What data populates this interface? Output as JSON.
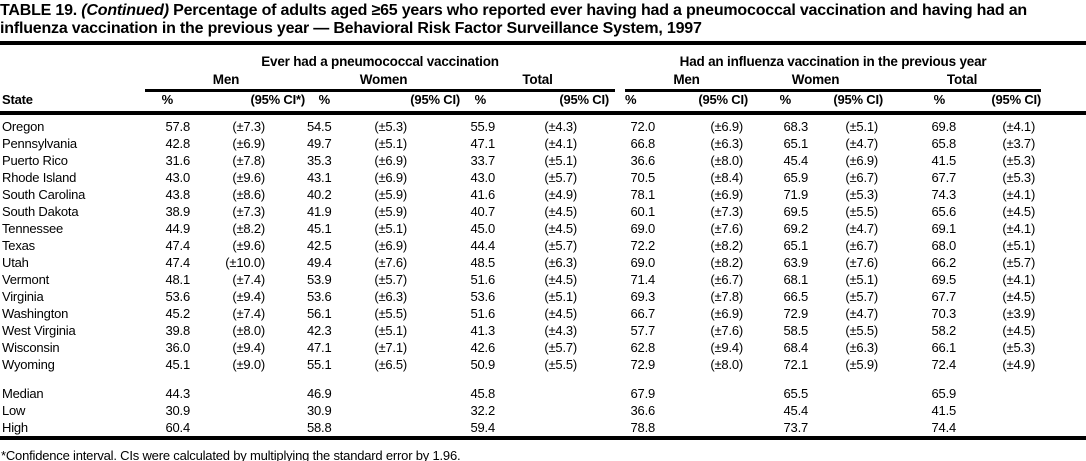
{
  "colors": {
    "text": "#000000",
    "background": "#ffffff"
  },
  "title": {
    "table_label": "TABLE 19.",
    "continued": "(Continued)",
    "text": "Percentage of adults aged ≥65 years who reported ever having had a pneumococcal vaccination and having had an influenza vaccination in the previous year — Behavioral Risk Factor Surveillance System, 1997"
  },
  "table": {
    "state_header": "State",
    "section_pneumococcal": {
      "title": "Ever had a pneumococcal vaccination",
      "groups": [
        "Men",
        "Women",
        "Total"
      ],
      "col_headers": [
        "%",
        "(95% CI*)",
        "%",
        "(95% CI)",
        "%",
        "(95% CI)"
      ]
    },
    "section_influenza": {
      "title": "Had an influenza vaccination in the previous year",
      "groups": [
        "Men",
        "Women",
        "Total"
      ],
      "col_headers": [
        "%",
        "(95% CI)",
        "%",
        "(95% CI)",
        "%",
        "(95% CI)"
      ]
    },
    "rows": [
      {
        "state": "Oregon",
        "values": [
          "57.8",
          "(±7.3)",
          "54.5",
          "(±5.3)",
          "55.9",
          "(±4.3)",
          "72.0",
          "(±6.9)",
          "68.3",
          "(±5.1)",
          "69.8",
          "(±4.1)"
        ]
      },
      {
        "state": "Pennsylvania",
        "values": [
          "42.8",
          "(±6.9)",
          "49.7",
          "(±5.1)",
          "47.1",
          "(±4.1)",
          "66.8",
          "(±6.3)",
          "65.1",
          "(±4.7)",
          "65.8",
          "(±3.7)"
        ]
      },
      {
        "state": "Puerto Rico",
        "values": [
          "31.6",
          "(±7.8)",
          "35.3",
          "(±6.9)",
          "33.7",
          "(±5.1)",
          "36.6",
          "(±8.0)",
          "45.4",
          "(±6.9)",
          "41.5",
          "(±5.3)"
        ]
      },
      {
        "state": "Rhode Island",
        "values": [
          "43.0",
          "(±9.6)",
          "43.1",
          "(±6.9)",
          "43.0",
          "(±5.7)",
          "70.5",
          "(±8.4)",
          "65.9",
          "(±6.7)",
          "67.7",
          "(±5.3)"
        ]
      },
      {
        "state": "South Carolina",
        "values": [
          "43.8",
          "(±8.6)",
          "40.2",
          "(±5.9)",
          "41.6",
          "(±4.9)",
          "78.1",
          "(±6.9)",
          "71.9",
          "(±5.3)",
          "74.3",
          "(±4.1)"
        ]
      },
      {
        "state": "South Dakota",
        "values": [
          "38.9",
          "(±7.3)",
          "41.9",
          "(±5.9)",
          "40.7",
          "(±4.5)",
          "60.1",
          "(±7.3)",
          "69.5",
          "(±5.5)",
          "65.6",
          "(±4.5)"
        ]
      },
      {
        "state": "Tennessee",
        "values": [
          "44.9",
          "(±8.2)",
          "45.1",
          "(±5.1)",
          "45.0",
          "(±4.5)",
          "69.0",
          "(±7.6)",
          "69.2",
          "(±4.7)",
          "69.1",
          "(±4.1)"
        ]
      },
      {
        "state": "Texas",
        "values": [
          "47.4",
          "(±9.6)",
          "42.5",
          "(±6.9)",
          "44.4",
          "(±5.7)",
          "72.2",
          "(±8.2)",
          "65.1",
          "(±6.7)",
          "68.0",
          "(±5.1)"
        ]
      },
      {
        "state": "Utah",
        "values": [
          "47.4",
          "(±10.0)",
          "49.4",
          "(±7.6)",
          "48.5",
          "(±6.3)",
          "69.0",
          "(±8.2)",
          "63.9",
          "(±7.6)",
          "66.2",
          "(±5.7)"
        ]
      },
      {
        "state": "Vermont",
        "values": [
          "48.1",
          "(±7.4)",
          "53.9",
          "(±5.7)",
          "51.6",
          "(±4.5)",
          "71.4",
          "(±6.7)",
          "68.1",
          "(±5.1)",
          "69.5",
          "(±4.1)"
        ]
      },
      {
        "state": "Virginia",
        "values": [
          "53.6",
          "(±9.4)",
          "53.6",
          "(±6.3)",
          "53.6",
          "(±5.1)",
          "69.3",
          "(±7.8)",
          "66.5",
          "(±5.7)",
          "67.7",
          "(±4.5)"
        ]
      },
      {
        "state": "Washington",
        "values": [
          "45.2",
          "(±7.4)",
          "56.1",
          "(±5.5)",
          "51.6",
          "(±4.5)",
          "66.7",
          "(±6.9)",
          "72.9",
          "(±4.7)",
          "70.3",
          "(±3.9)"
        ]
      },
      {
        "state": "West Virginia",
        "values": [
          "39.8",
          "(±8.0)",
          "42.3",
          "(±5.1)",
          "41.3",
          "(±4.3)",
          "57.7",
          "(±7.6)",
          "58.5",
          "(±5.5)",
          "58.2",
          "(±4.5)"
        ]
      },
      {
        "state": "Wisconsin",
        "values": [
          "36.0",
          "(±9.4)",
          "47.1",
          "(±7.1)",
          "42.6",
          "(±5.7)",
          "62.8",
          "(±9.4)",
          "68.4",
          "(±6.3)",
          "66.1",
          "(±5.3)"
        ]
      },
      {
        "state": "Wyoming",
        "values": [
          "45.1",
          "(±9.0)",
          "55.1",
          "(±6.5)",
          "50.9",
          "(±5.5)",
          "72.9",
          "(±8.0)",
          "72.1",
          "(±5.9)",
          "72.4",
          "(±4.9)"
        ]
      }
    ],
    "summary_rows": [
      {
        "label": "Median",
        "values": [
          "44.3",
          "",
          "46.9",
          "",
          "45.8",
          "",
          "67.9",
          "",
          "65.5",
          "",
          "65.9",
          ""
        ]
      },
      {
        "label": "Low",
        "values": [
          "30.9",
          "",
          "30.9",
          "",
          "32.2",
          "",
          "36.6",
          "",
          "45.4",
          "",
          "41.5",
          ""
        ]
      },
      {
        "label": "High",
        "values": [
          "60.4",
          "",
          "58.8",
          "",
          "59.4",
          "",
          "78.8",
          "",
          "73.7",
          "",
          "74.4",
          ""
        ]
      }
    ]
  },
  "footnote": "*Confidence interval. CIs were calculated by multiplying the standard error by 1.96."
}
